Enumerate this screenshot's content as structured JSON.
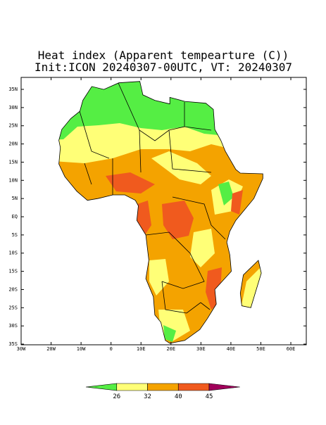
{
  "title": "Heat index (Apparent tempearture (C))",
  "subtitle": "Init:ICON 20240307-00UTC, VT: 20240307",
  "map": {
    "lat_ticks": [
      "35N",
      "30N",
      "25N",
      "20N",
      "15N",
      "10N",
      "5N",
      "EQ",
      "5S",
      "10S",
      "15S",
      "20S",
      "25S",
      "30S",
      "35S"
    ],
    "lon_ticks": [
      "30W",
      "20W",
      "10W",
      "0",
      "10E",
      "20E",
      "30E",
      "40E",
      "50E",
      "60E"
    ]
  },
  "colorbar": {
    "labels": [
      "26",
      "32",
      "40",
      "45"
    ],
    "colors": [
      "#55ee44",
      "#ffff77",
      "#f4a300",
      "#f05a1e",
      "#a0005a"
    ]
  }
}
